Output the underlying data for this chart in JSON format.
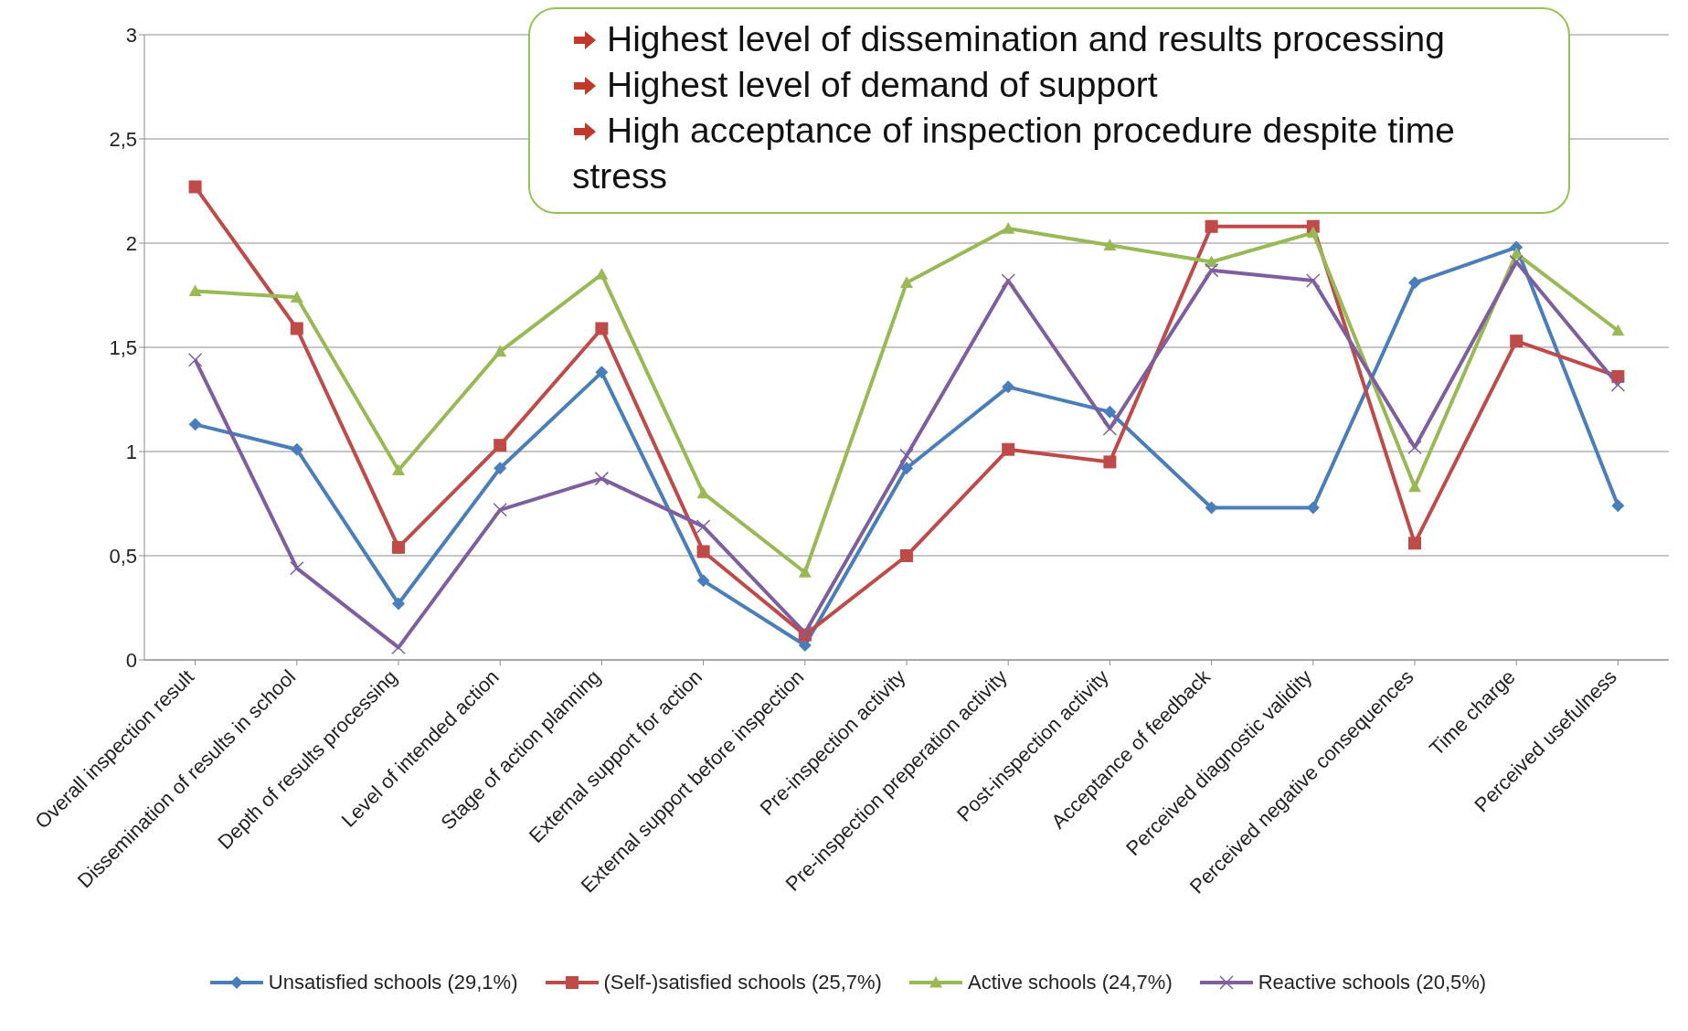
{
  "chart_data": {
    "type": "line",
    "categories": [
      "Overall inspection result",
      "Dissemination of results in school",
      "Depth of results processing",
      "Level of intended action",
      "Stage of action planning",
      "External support for action",
      "External support before inspection",
      "Pre-inspection activity",
      "Pre-inspection preperation activity",
      "Post-inspection activity",
      "Acceptance of feedback",
      "Perceived diagnostic validity",
      "Perceived negative consequences",
      "Time charge",
      "Perceived usefulness"
    ],
    "series": [
      {
        "name": "Unsatisfied schools (29,1%)",
        "color": "#4a7ebb",
        "marker": "diamond",
        "values": [
          1.13,
          1.01,
          0.27,
          0.92,
          1.38,
          0.38,
          0.07,
          0.92,
          1.31,
          1.19,
          0.73,
          0.73,
          1.81,
          1.98,
          0.74
        ]
      },
      {
        "name": "(Self-)satisfied schools (25,7%)",
        "color": "#be4b48",
        "marker": "square",
        "values": [
          2.27,
          1.59,
          0.54,
          1.03,
          1.59,
          0.52,
          0.12,
          0.5,
          1.01,
          0.95,
          2.08,
          2.08,
          0.56,
          1.53,
          1.36
        ]
      },
      {
        "name": "Active schools (24,7%)",
        "color": "#98b954",
        "marker": "triangle",
        "values": [
          1.77,
          1.74,
          0.91,
          1.48,
          1.85,
          0.8,
          0.42,
          1.81,
          2.07,
          1.99,
          1.91,
          2.05,
          0.83,
          1.95,
          1.58
        ]
      },
      {
        "name": "Reactive schools (20,5%)",
        "color": "#7d5fa0",
        "marker": "cross",
        "values": [
          1.44,
          0.44,
          0.06,
          0.72,
          0.87,
          0.64,
          0.13,
          0.98,
          1.82,
          1.11,
          1.87,
          1.82,
          1.02,
          1.91,
          1.32
        ]
      }
    ],
    "ylim": [
      0,
      3
    ],
    "yticks": [
      0,
      {
        "value": 0.5,
        "label": "0,5"
      },
      1,
      {
        "value": 1.5,
        "label": "1,5"
      },
      2,
      {
        "value": 2.5,
        "label": "2,5"
      },
      3
    ],
    "grid": "y",
    "legend": "bottom",
    "line_style": "solid",
    "annotations": [
      "Highest level of dissemination and results processing",
      "Highest level of demand of support",
      "High acceptance of inspection procedure despite time stress"
    ]
  }
}
